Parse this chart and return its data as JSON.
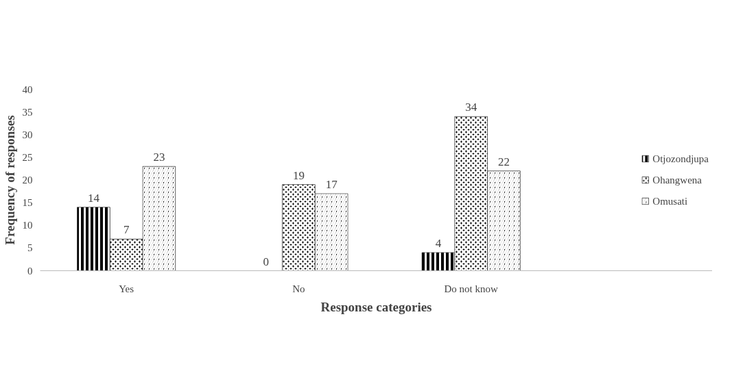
{
  "chart_data": {
    "type": "bar",
    "xlabel": "Response categories",
    "ylabel": "Frequency of responses",
    "categories": [
      "Yes",
      "No",
      "Do not know"
    ],
    "series": [
      {
        "name": "Otjozondjupa",
        "color": "#000000",
        "values": [
          14,
          0,
          4
        ]
      },
      {
        "name": "Ohangwena",
        "color": "#000000",
        "values": [
          7,
          19,
          34
        ]
      },
      {
        "name": "Omusati",
        "color": "#000000",
        "values": [
          23,
          17,
          22
        ]
      }
    ],
    "ylim": [
      0,
      40
    ],
    "yticks": [
      0,
      5,
      10,
      15,
      20,
      25,
      30,
      35,
      40
    ],
    "data_labels": true,
    "legend": "right",
    "grid": false
  }
}
